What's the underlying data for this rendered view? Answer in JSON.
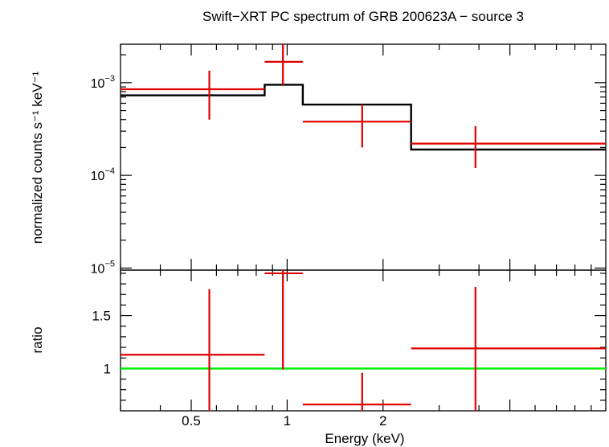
{
  "chart_data": {
    "type": "scatter",
    "title": "Swift−XRT PC spectrum of GRB 200623A − source 3",
    "xlabel": "Energy (keV)",
    "xscale": "log",
    "xlim": [
      0.3,
      10.0
    ],
    "x_ticklabels": [
      "0.5",
      "1",
      "2"
    ],
    "panels": [
      {
        "name": "spectrum",
        "ylabel": "normalized counts s⁻¹ keV⁻¹",
        "yscale": "log",
        "ylim": [
          9.5e-06,
          0.0026
        ],
        "y_ticklabels": [
          {
            "value": 0.001,
            "mantissa": "10",
            "exponent": "−3"
          },
          {
            "value": 0.0001,
            "mantissa": "10",
            "exponent": "−4"
          },
          {
            "value": 1e-05,
            "mantissa": "10",
            "exponent": "−5"
          }
        ],
        "series": [
          {
            "name": "data",
            "color": "#e00000",
            "points": [
              {
                "x": 0.57,
                "xlo": 0.3,
                "xhi": 0.85,
                "y": 0.00085,
                "ylo": 0.0004,
                "yhi": 0.00135
              },
              {
                "x": 0.97,
                "xlo": 0.85,
                "xhi": 1.12,
                "y": 0.00168,
                "ylo": 0.00095,
                "yhi": 0.0026
              },
              {
                "x": 1.72,
                "xlo": 1.12,
                "xhi": 2.45,
                "y": 0.00038,
                "ylo": 0.0002,
                "yhi": 0.00058
              },
              {
                "x": 3.9,
                "xlo": 2.45,
                "xhi": 10.0,
                "y": 0.00022,
                "ylo": 0.00012,
                "yhi": 0.00034
              }
            ]
          },
          {
            "name": "model",
            "color": "#000000",
            "steps": [
              {
                "xlo": 0.3,
                "xhi": 0.85,
                "y": 0.00073
              },
              {
                "xlo": 0.85,
                "xhi": 1.12,
                "y": 0.00095
              },
              {
                "xlo": 1.12,
                "xhi": 2.45,
                "y": 0.00058
              },
              {
                "xlo": 2.45,
                "xhi": 10.0,
                "y": 0.00019
              }
            ]
          }
        ]
      },
      {
        "name": "ratio",
        "ylabel": "ratio",
        "yscale": "linear",
        "ylim": [
          0.6,
          1.93
        ],
        "y_ticklabels": [
          {
            "value": 1.0,
            "label": "1"
          },
          {
            "value": 1.5,
            "label": "1.5"
          }
        ],
        "reference_line": {
          "y": 1.0,
          "color": "#00ee00"
        },
        "series": [
          {
            "name": "data/model",
            "color": "#e00000",
            "points": [
              {
                "x": 0.57,
                "xlo": 0.3,
                "xhi": 0.85,
                "y": 1.13,
                "ylo": 0.6,
                "yhi": 1.75
              },
              {
                "x": 0.97,
                "xlo": 0.85,
                "xhi": 1.12,
                "y": 1.9,
                "ylo": 0.99,
                "yhi": 1.93
              },
              {
                "x": 1.72,
                "xlo": 1.12,
                "xhi": 2.45,
                "y": 0.66,
                "ylo": 0.6,
                "yhi": 0.96
              },
              {
                "x": 3.9,
                "xlo": 2.45,
                "xhi": 10.0,
                "y": 1.19,
                "ylo": 0.6,
                "yhi": 1.77
              }
            ]
          }
        ]
      }
    ]
  }
}
